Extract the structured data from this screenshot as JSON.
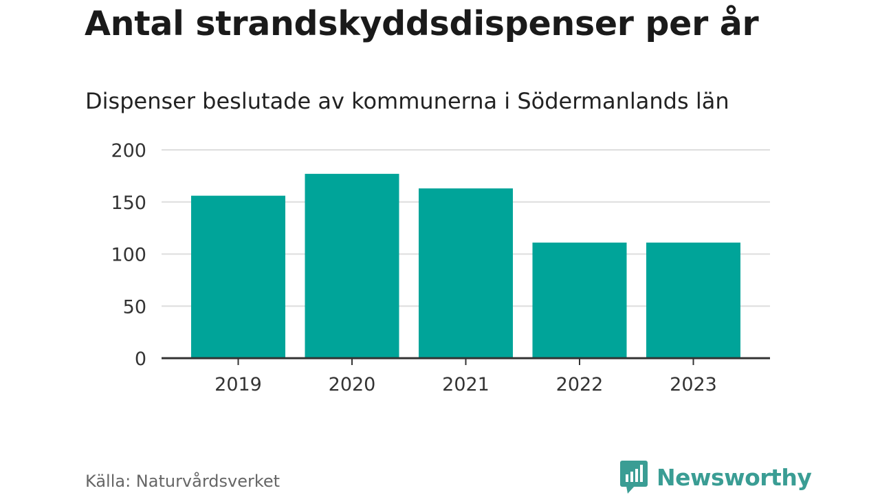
{
  "title": "Antal strandskyddsdispenser per år",
  "subtitle": "Dispenser beslutade av kommunerna i Södermanlands län",
  "source": "Källa: Naturvårdsverket",
  "brand": {
    "name": "Newsworthy",
    "icon": "newsworthy-logo-icon",
    "color": "#3a9d94"
  },
  "colors": {
    "bar": "#00a499",
    "grid": "#dddddd",
    "axis": "#333333"
  },
  "chart_data": {
    "type": "bar",
    "title": "Antal strandskyddsdispenser per år",
    "subtitle": "Dispenser beslutade av kommunerna i Södermanlands län",
    "categories": [
      "2019",
      "2020",
      "2021",
      "2022",
      "2023"
    ],
    "values": [
      156,
      177,
      163,
      111,
      111
    ],
    "xlabel": "",
    "ylabel": "",
    "ylim": [
      0,
      200
    ],
    "yticks": [
      0,
      50,
      100,
      150,
      200
    ],
    "grid": true,
    "legend": "none"
  }
}
